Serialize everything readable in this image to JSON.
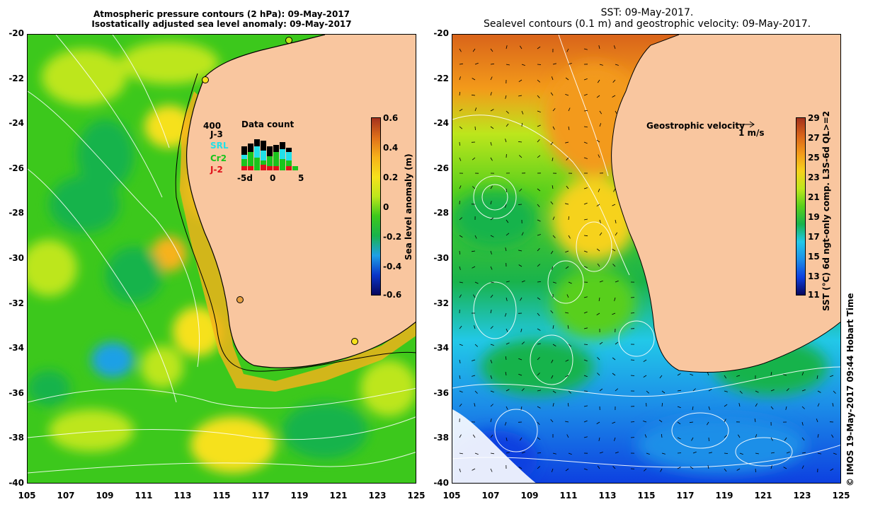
{
  "left_title": {
    "line1": "Atmospheric pressure contours (2 hPa): 09-May-2017",
    "line2": "Isostatically adjusted sea level anomaly: 09-May-2017"
  },
  "right_title": {
    "line1": "SST: 09-May-2017.",
    "line2": "Sealevel contours (0.1 m) and geostrophic velocity: 09-May-2017."
  },
  "y_ticks": [
    "-20",
    "-22",
    "-24",
    "-26",
    "-28",
    "-30",
    "-32",
    "-34",
    "-36",
    "-38",
    "-40"
  ],
  "x_ticks": [
    "105",
    "107",
    "109",
    "111",
    "113",
    "115",
    "117",
    "119",
    "121",
    "123",
    "125"
  ],
  "left_colorbar": {
    "label": "Sea level anomaly (m)",
    "ticks": [
      "0.6",
      "0.4",
      "0.2",
      "0",
      "-0.2",
      "-0.4",
      "-0.6"
    ],
    "colors": [
      "#08065c",
      "#0a35c9",
      "#1fa0e6",
      "#19b34c",
      "#3cc81c",
      "#bde61c",
      "#f6e11c",
      "#f7b21a",
      "#e0701a",
      "#a3311c"
    ]
  },
  "right_colorbar": {
    "label": "SST (°C) 6d ngt-only comp. L3S-6d QL>=2",
    "ticks": [
      "29",
      "27",
      "25",
      "23",
      "21",
      "19",
      "17",
      "15",
      "13",
      "11"
    ],
    "colors": [
      "#08065c",
      "#0d3fe0",
      "#1c8fe8",
      "#22c8e8",
      "#19b34c",
      "#58cf1c",
      "#bde61c",
      "#f6d21c",
      "#f39a1a",
      "#d9641a",
      "#a3311c"
    ]
  },
  "data_count": {
    "title": "Data count",
    "y_max_label": "400",
    "x_ticks": [
      "-5d",
      "0",
      "5"
    ],
    "series": [
      {
        "name": "J-3",
        "color": "#000000"
      },
      {
        "name": "SRL",
        "color": "#22e0e8"
      },
      {
        "name": "Cr2",
        "color": "#19c41c"
      },
      {
        "name": "J-2",
        "color": "#e0101a"
      }
    ]
  },
  "velocity_legend": {
    "label": "Geostrophic velocity",
    "scale_label": "1 m/s"
  },
  "credit": "© IMOS 19-May-2017 09:44 Hobart Time",
  "colors": {
    "land": "#f9c69f",
    "coast": "#000000",
    "contour": "#ffffff",
    "tide_gauge_marker": "#e8a040"
  }
}
